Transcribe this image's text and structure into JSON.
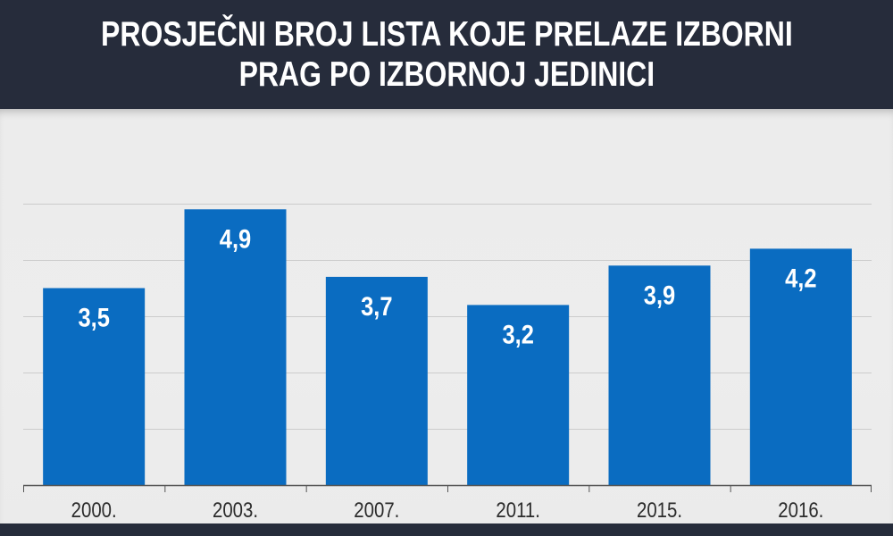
{
  "title": {
    "line1": "PROSJEČNI BROJ LISTA KOJE PRELAZE IZBORNI",
    "line2": "PRAG PO IZBORNOJ JEDINICI"
  },
  "colors": {
    "bar": "#0a6cc1",
    "header": "#262c3b",
    "plot_background": "#ececec",
    "gridline": "#cccccc"
  },
  "chart_data": {
    "type": "bar",
    "title": "PROSJEČNI BROJ LISTA KOJE PRELAZE IZBORNI PRAG PO IZBORNOJ JEDINICI",
    "categories": [
      "2000.",
      "2003.",
      "2007.",
      "2011.",
      "2015.",
      "2016."
    ],
    "values": [
      3.5,
      4.9,
      3.7,
      3.2,
      3.9,
      4.2
    ],
    "value_labels": [
      "3,5",
      "4,9",
      "3,7",
      "3,2",
      "3,9",
      "4,2"
    ],
    "xlabel": "",
    "ylabel": "",
    "ylim": [
      0,
      5
    ],
    "grid": true,
    "legend": "none"
  }
}
